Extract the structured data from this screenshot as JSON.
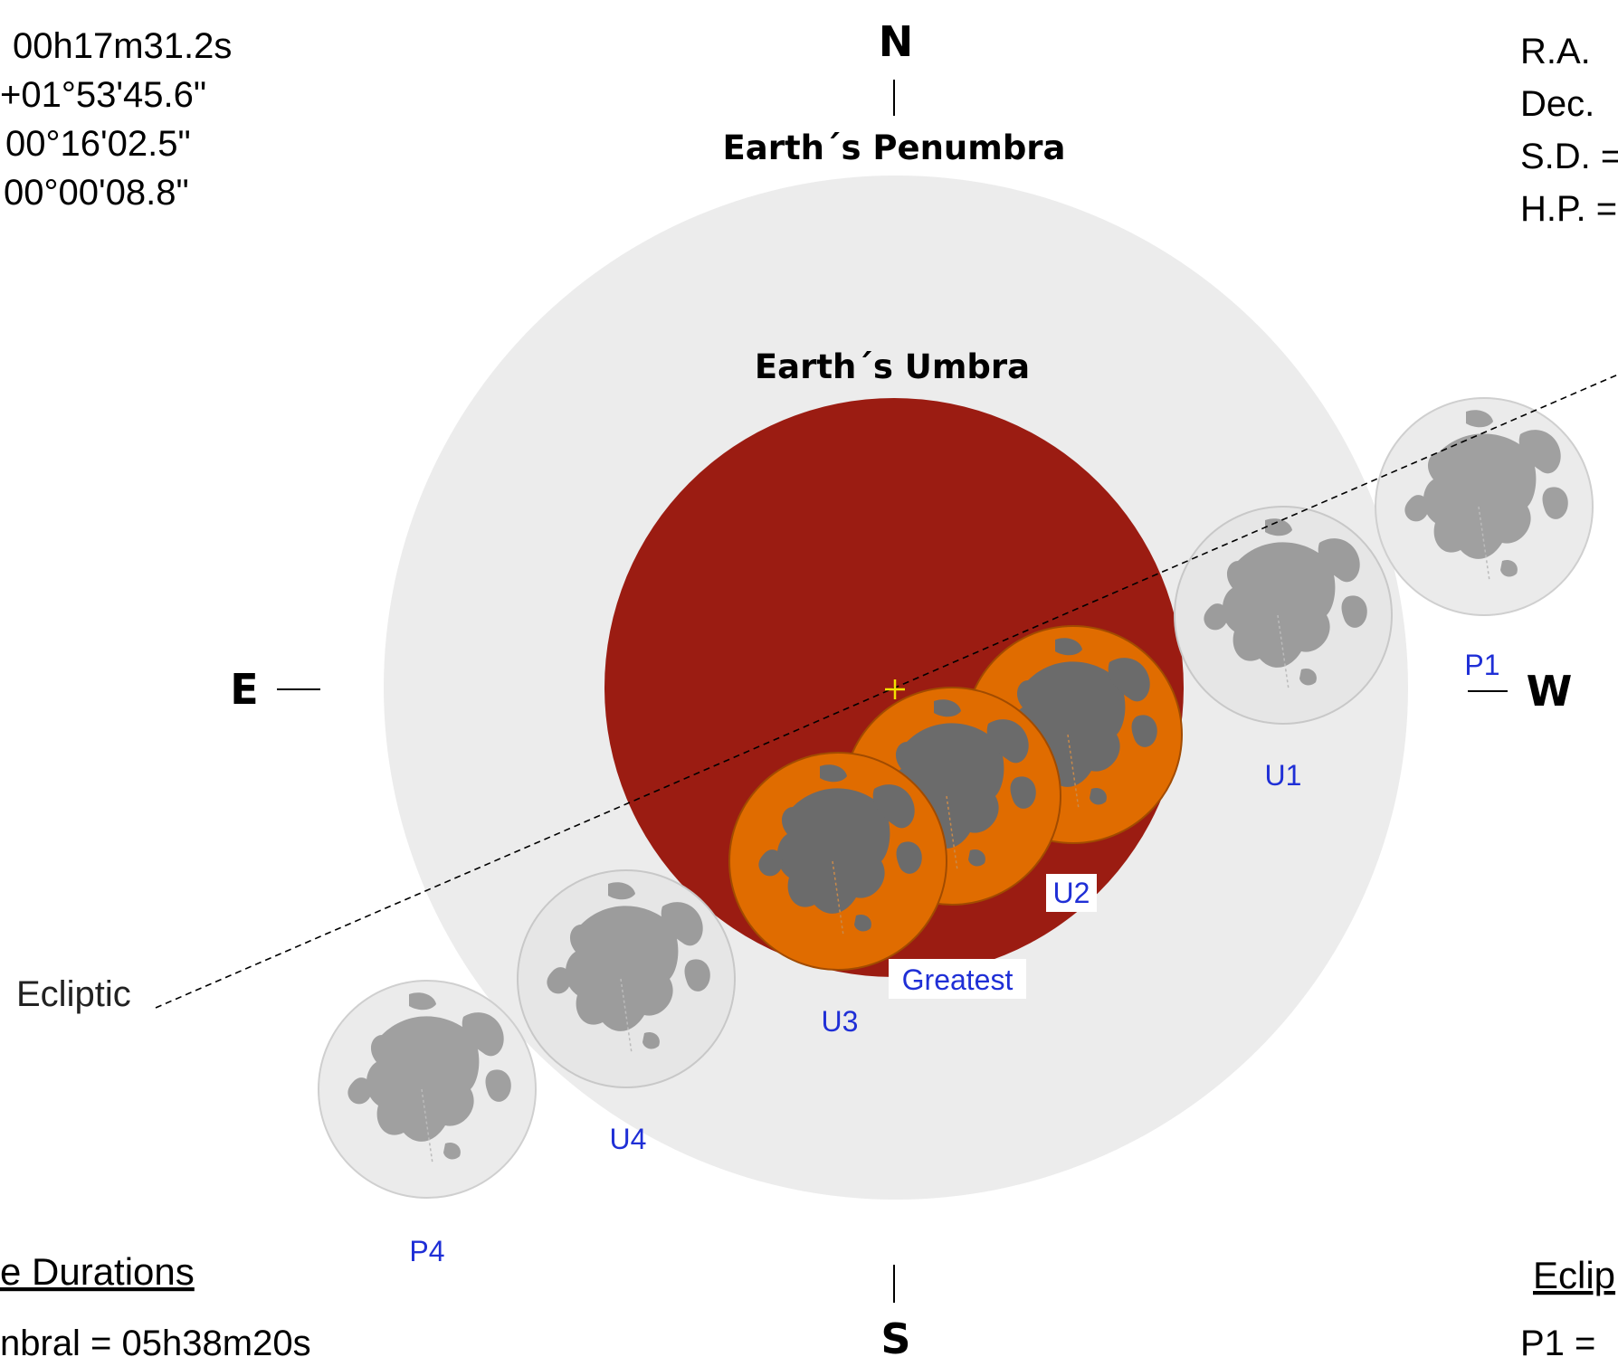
{
  "compass": {
    "north": "N",
    "south": "S",
    "east": "E",
    "west": "W"
  },
  "regions": {
    "penumbra_label": "Earth´s Penumbra",
    "umbra_label": "Earth´s Umbra"
  },
  "ecliptic_label": "Ecliptic",
  "left_data": [
    "00h17m31.2s",
    "+01°53'45.6\"",
    "00°16'02.5\"",
    "00°00'08.8\""
  ],
  "right_data": [
    "R.A.",
    "Dec.",
    "S.D. =",
    "H.P. ="
  ],
  "contacts": [
    "P1",
    "U1",
    "U2",
    "Greatest",
    "U3",
    "U4",
    "P4"
  ],
  "bottom_left": {
    "heading": "e Durations",
    "line": "nbral = 05h38m20s"
  },
  "bottom_right": {
    "heading": "Eclip",
    "line": "P1 ="
  },
  "colors": {
    "penumbra": "#ececec",
    "umbra": "#9b1c12",
    "moon_eclipsed": "#e06c00",
    "moon_outside": "#e6e6e6",
    "maria_outside": "#9c9c9c",
    "maria_eclipsed": "#6b6b6b",
    "contact_label": "#1f2fd6",
    "center_cross": "#f2e200"
  }
}
